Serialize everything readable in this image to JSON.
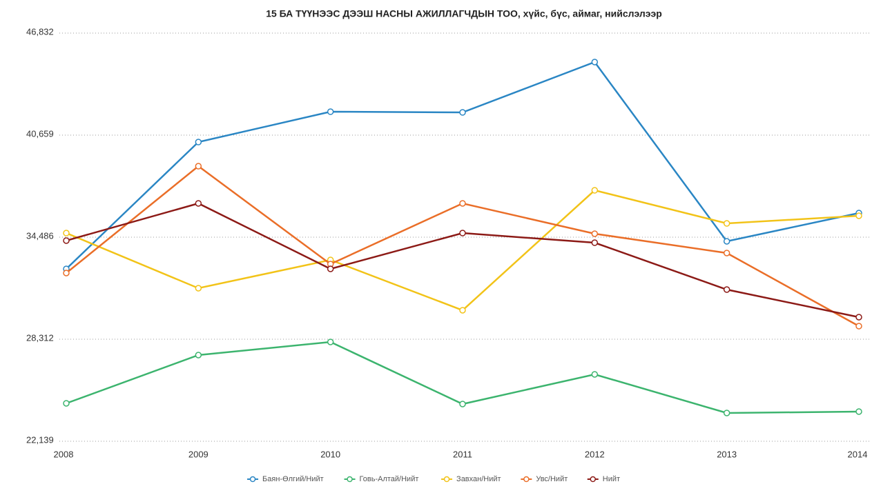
{
  "chart_data": {
    "type": "line",
    "title": "15 БА ТҮҮНЭЭС ДЭЭШ НАСНЫ АЖИЛЛАГЧДЫН ТОО, хүйс, бүс, аймаг, нийслэлээр",
    "categories": [
      "2008",
      "2009",
      "2010",
      "2011",
      "2012",
      "2013",
      "2014"
    ],
    "series": [
      {
        "name": "Баян-Өлгий/Нийт",
        "color": "#2a86c4",
        "values": [
          32567,
          40241,
          42076,
          42034,
          45080,
          34235,
          35945
        ]
      },
      {
        "name": "Говь-Алтай/Нийт",
        "color": "#3cb46e",
        "values": [
          24433,
          27353,
          28145,
          24391,
          26185,
          23849,
          23932
        ]
      },
      {
        "name": "Завхан/Нийт",
        "color": "#f2c318",
        "values": [
          34735,
          31399,
          33109,
          30064,
          37321,
          35319,
          35778
        ]
      },
      {
        "name": "Увс/Нийт",
        "color": "#ea6e28",
        "values": [
          32316,
          38781,
          32858,
          36529,
          34694,
          33526,
          29104
        ]
      },
      {
        "name": "Нийт",
        "color": "#8c1a16",
        "values": [
          34277,
          36529,
          32567,
          34735,
          34151,
          31315,
          29647
        ]
      }
    ],
    "ylim": [
      22139,
      46832
    ],
    "yticks": [
      {
        "value": 22139,
        "label": "22,139"
      },
      {
        "value": 28312,
        "label": "28,312"
      },
      {
        "value": 34486,
        "label": "34,486"
      },
      {
        "value": 40659,
        "label": "40,659"
      },
      {
        "value": 46832,
        "label": "46,832"
      }
    ],
    "grid": true,
    "legend": "bottom"
  }
}
